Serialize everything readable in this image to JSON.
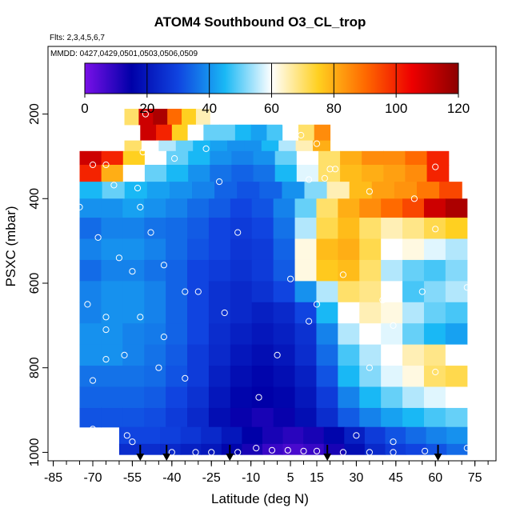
{
  "chart_data": {
    "type": "heatmap",
    "title": "ATOM4 Southbound O3_CL_trop",
    "flights_label": "Flts: 2,3,4,5,6,7",
    "mmdd_label": "MMDD: 0427,0429,0501,0503,0506,0509",
    "xlabel": "Latitude (deg N)",
    "ylabel": "PSXC (mbar)",
    "xlim": [
      -87,
      83
    ],
    "ylim": [
      1020,
      40
    ],
    "x_ticks": [
      -85,
      -70,
      -55,
      -40,
      -25,
      -10,
      5,
      15,
      30,
      45,
      60,
      75
    ],
    "x_minor_step": 5,
    "y_ticks": [
      200,
      400,
      600,
      800,
      1000
    ],
    "colorbar": {
      "ticks": [
        0,
        20,
        40,
        60,
        80,
        100,
        120
      ],
      "range": [
        0,
        120
      ],
      "colors": [
        "#7a10e8",
        "#0000a8",
        "#1044e0",
        "#19b8f5",
        "#ffffff",
        "#ffd020",
        "#ff6a00",
        "#ee0000",
        "#8b0000"
      ]
    },
    "column_edges": [
      -76,
      -65,
      -55,
      -45,
      -35,
      -25,
      -16,
      -8,
      0,
      8,
      14,
      20,
      28,
      36,
      44,
      52,
      60,
      67,
      72
    ],
    "layers": [
      {
        "p": 200,
        "lat": [
          -58,
          -20
        ],
        "values": [
          70,
          110,
          115,
          90,
          75,
          65,
          60
        ]
      },
      {
        "p": 250,
        "lat": [
          -52,
          20
        ],
        "values": [
          110,
          100,
          75,
          60,
          50,
          50,
          45,
          42,
          48,
          60,
          70,
          85
        ]
      },
      {
        "p": 275,
        "lat": [
          -58,
          20
        ],
        "values": [
          70,
          60,
          55,
          50,
          45,
          42,
          40,
          40,
          45,
          55,
          65,
          80
        ]
      },
      {
        "p": 300,
        "lat": [
          -75,
          65
        ],
        "values": [
          110,
          100,
          75,
          60,
          50,
          45,
          40,
          38,
          40,
          50,
          60,
          70,
          80,
          85,
          85,
          90,
          100
        ]
      },
      {
        "p": 340,
        "lat": [
          -75,
          65
        ],
        "values": [
          100,
          80,
          60,
          50,
          45,
          40,
          36,
          34,
          36,
          45,
          58,
          70,
          78,
          80,
          82,
          85,
          100
        ]
      },
      {
        "p": 380,
        "lat": [
          -75,
          70
        ],
        "values": [
          45,
          50,
          45,
          42,
          40,
          38,
          34,
          32,
          34,
          40,
          52,
          65,
          78,
          82,
          84,
          88,
          95
        ]
      },
      {
        "p": 420,
        "lat": [
          -75,
          72
        ],
        "values": [
          40,
          40,
          42,
          40,
          38,
          35,
          33,
          30,
          32,
          38,
          50,
          70,
          80,
          85,
          90,
          95,
          110,
          115
        ]
      },
      {
        "p": 470,
        "lat": [
          -75,
          72
        ],
        "values": [
          35,
          38,
          38,
          36,
          35,
          33,
          30,
          28,
          30,
          36,
          55,
          72,
          78,
          70,
          65,
          68,
          72,
          75
        ]
      },
      {
        "p": 520,
        "lat": [
          -75,
          72
        ],
        "values": [
          38,
          40,
          40,
          38,
          35,
          32,
          30,
          27,
          28,
          34,
          62,
          78,
          80,
          72,
          60,
          62,
          58,
          55
        ]
      },
      {
        "p": 570,
        "lat": [
          -75,
          72
        ],
        "values": [
          35,
          38,
          38,
          36,
          34,
          30,
          28,
          26,
          28,
          33,
          62,
          76,
          78,
          70,
          55,
          50,
          48,
          52
        ]
      },
      {
        "p": 620,
        "lat": [
          -75,
          72
        ],
        "values": [
          38,
          40,
          40,
          38,
          34,
          30,
          26,
          24,
          26,
          30,
          40,
          55,
          70,
          68,
          60,
          48,
          52,
          55
        ]
      },
      {
        "p": 670,
        "lat": [
          -75,
          72
        ],
        "values": [
          38,
          40,
          40,
          38,
          34,
          30,
          26,
          24,
          22,
          24,
          30,
          45,
          60,
          65,
          62,
          55,
          50,
          48
        ]
      },
      {
        "p": 720,
        "lat": [
          -75,
          72
        ],
        "values": [
          40,
          40,
          38,
          37,
          34,
          30,
          25,
          22,
          20,
          22,
          26,
          38,
          55,
          60,
          58,
          50,
          45,
          42
        ]
      },
      {
        "p": 770,
        "lat": [
          -75,
          72
        ],
        "values": [
          40,
          40,
          38,
          36,
          33,
          28,
          24,
          20,
          18,
          20,
          25,
          35,
          48,
          55,
          60,
          65,
          68,
          60
        ]
      },
      {
        "p": 820,
        "lat": [
          -75,
          72
        ],
        "values": [
          36,
          36,
          36,
          35,
          32,
          28,
          22,
          18,
          16,
          18,
          22,
          32,
          45,
          52,
          58,
          62,
          70,
          72
        ]
      },
      {
        "p": 870,
        "lat": [
          -75,
          72
        ],
        "values": [
          34,
          34,
          34,
          33,
          30,
          26,
          20,
          16,
          15,
          16,
          20,
          28,
          38,
          45,
          50,
          55,
          58,
          60
        ]
      },
      {
        "p": 920,
        "lat": [
          -75,
          72
        ],
        "values": [
          32,
          32,
          32,
          31,
          28,
          24,
          18,
          14,
          12,
          14,
          18,
          25,
          33,
          38,
          42,
          45,
          48,
          50
        ]
      },
      {
        "p": 960,
        "lat": [
          -60,
          72
        ],
        "values": [
          30,
          30,
          29,
          27,
          24,
          20,
          15,
          12,
          10,
          12,
          16,
          22,
          28,
          32,
          35,
          38,
          40
        ]
      },
      {
        "p": 1000,
        "lat": [
          -60,
          72
        ],
        "values": [
          25,
          25,
          24,
          22,
          20,
          16,
          12,
          8,
          6,
          8,
          12,
          18,
          24,
          28,
          30,
          32,
          35
        ]
      }
    ],
    "sample_points": [
      {
        "lat": -8,
        "p": 205
      },
      {
        "lat": -6,
        "p": 205
      },
      {
        "lat": -4,
        "p": 205
      },
      {
        "lat": -50,
        "p": 200
      },
      {
        "lat": 3,
        "p": 222
      },
      {
        "lat": 9,
        "p": 250
      },
      {
        "lat": 15,
        "p": 270
      },
      {
        "lat": 40,
        "p": 262
      },
      {
        "lat": 35,
        "p": 277
      },
      {
        "lat": 42,
        "p": 275
      },
      {
        "lat": 48,
        "p": 277
      },
      {
        "lat": -51,
        "p": 290
      },
      {
        "lat": -39,
        "p": 305
      },
      {
        "lat": -27,
        "p": 282
      },
      {
        "lat": -70,
        "p": 320
      },
      {
        "lat": -65,
        "p": 320
      },
      {
        "lat": -62,
        "p": 368
      },
      {
        "lat": -53,
        "p": 375
      },
      {
        "lat": -22,
        "p": 360
      },
      {
        "lat": 20,
        "p": 330
      },
      {
        "lat": 18,
        "p": 352
      },
      {
        "lat": 22,
        "p": 330
      },
      {
        "lat": 60,
        "p": 325
      },
      {
        "lat": -75,
        "p": 420
      },
      {
        "lat": -52,
        "p": 420
      },
      {
        "lat": -48,
        "p": 480
      },
      {
        "lat": -15,
        "p": 480
      },
      {
        "lat": 12,
        "p": 355
      },
      {
        "lat": 35,
        "p": 383
      },
      {
        "lat": 52,
        "p": 400
      },
      {
        "lat": 60,
        "p": 472
      },
      {
        "lat": -68,
        "p": 492
      },
      {
        "lat": -60,
        "p": 540
      },
      {
        "lat": -55,
        "p": 572
      },
      {
        "lat": -43,
        "p": 557
      },
      {
        "lat": -35,
        "p": 620
      },
      {
        "lat": -30,
        "p": 620
      },
      {
        "lat": 5,
        "p": 590
      },
      {
        "lat": 15,
        "p": 650
      },
      {
        "lat": 25,
        "p": 580
      },
      {
        "lat": 40,
        "p": 640
      },
      {
        "lat": 55,
        "p": 620
      },
      {
        "lat": 72,
        "p": 610
      },
      {
        "lat": -72,
        "p": 650
      },
      {
        "lat": -65,
        "p": 680
      },
      {
        "lat": -65,
        "p": 710
      },
      {
        "lat": -52,
        "p": 680
      },
      {
        "lat": -43,
        "p": 727
      },
      {
        "lat": -20,
        "p": 670
      },
      {
        "lat": 12,
        "p": 690
      },
      {
        "lat": 35,
        "p": 737
      },
      {
        "lat": 44,
        "p": 700
      },
      {
        "lat": -70,
        "p": 830
      },
      {
        "lat": -65,
        "p": 780
      },
      {
        "lat": -58,
        "p": 770
      },
      {
        "lat": -45,
        "p": 800
      },
      {
        "lat": -35,
        "p": 825
      },
      {
        "lat": 0,
        "p": 770
      },
      {
        "lat": 35,
        "p": 800
      },
      {
        "lat": 60,
        "p": 810
      },
      {
        "lat": 72,
        "p": 860
      },
      {
        "lat": -7,
        "p": 870
      },
      {
        "lat": -70,
        "p": 945
      },
      {
        "lat": -65,
        "p": 950
      },
      {
        "lat": -57,
        "p": 960
      },
      {
        "lat": 30,
        "p": 960
      },
      {
        "lat": -8,
        "p": 990
      },
      {
        "lat": -2,
        "p": 995
      },
      {
        "lat": 4,
        "p": 995
      },
      {
        "lat": 10,
        "p": 997
      },
      {
        "lat": 15,
        "p": 997
      },
      {
        "lat": -55,
        "p": 975
      },
      {
        "lat": -40,
        "p": 1000
      },
      {
        "lat": -31,
        "p": 1000
      },
      {
        "lat": -25,
        "p": 1000
      },
      {
        "lat": -15,
        "p": 1000
      },
      {
        "lat": 25,
        "p": 1000
      },
      {
        "lat": 35,
        "p": 1000
      },
      {
        "lat": 44,
        "p": 1000
      },
      {
        "lat": 56,
        "p": 997
      },
      {
        "lat": 72,
        "p": 990
      },
      {
        "lat": 44,
        "p": 975
      }
    ],
    "arrows_lat": [
      -52,
      -42,
      -18,
      19,
      61
    ]
  }
}
